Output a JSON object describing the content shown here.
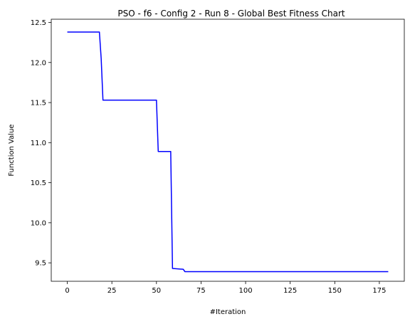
{
  "chart_data": {
    "type": "line",
    "title": "PSO - f6 - Config 2 - Run 8 - Global Best Fitness Chart",
    "xlabel": "#Iteration",
    "ylabel": "Function Value",
    "xlim": [
      -9,
      189
    ],
    "ylim": [
      9.27,
      12.54
    ],
    "xticks": [
      0,
      25,
      50,
      75,
      100,
      125,
      150,
      175
    ],
    "xtick_labels": [
      "0",
      "25",
      "50",
      "75",
      "100",
      "125",
      "150",
      "175"
    ],
    "yticks": [
      9.5,
      10.0,
      10.5,
      11.0,
      11.5,
      12.0,
      12.5
    ],
    "ytick_labels": [
      "9.5",
      "10.0",
      "10.5",
      "11.0",
      "11.5",
      "12.0",
      "12.5"
    ],
    "grid": false,
    "series": [
      {
        "color": "#0000ff",
        "x": [
          0,
          18,
          19,
          20,
          50,
          51,
          58,
          59,
          65,
          66,
          180
        ],
        "y": [
          12.38,
          12.38,
          12.05,
          11.53,
          11.53,
          10.89,
          10.89,
          9.43,
          9.42,
          9.39,
          9.39
        ]
      }
    ]
  }
}
